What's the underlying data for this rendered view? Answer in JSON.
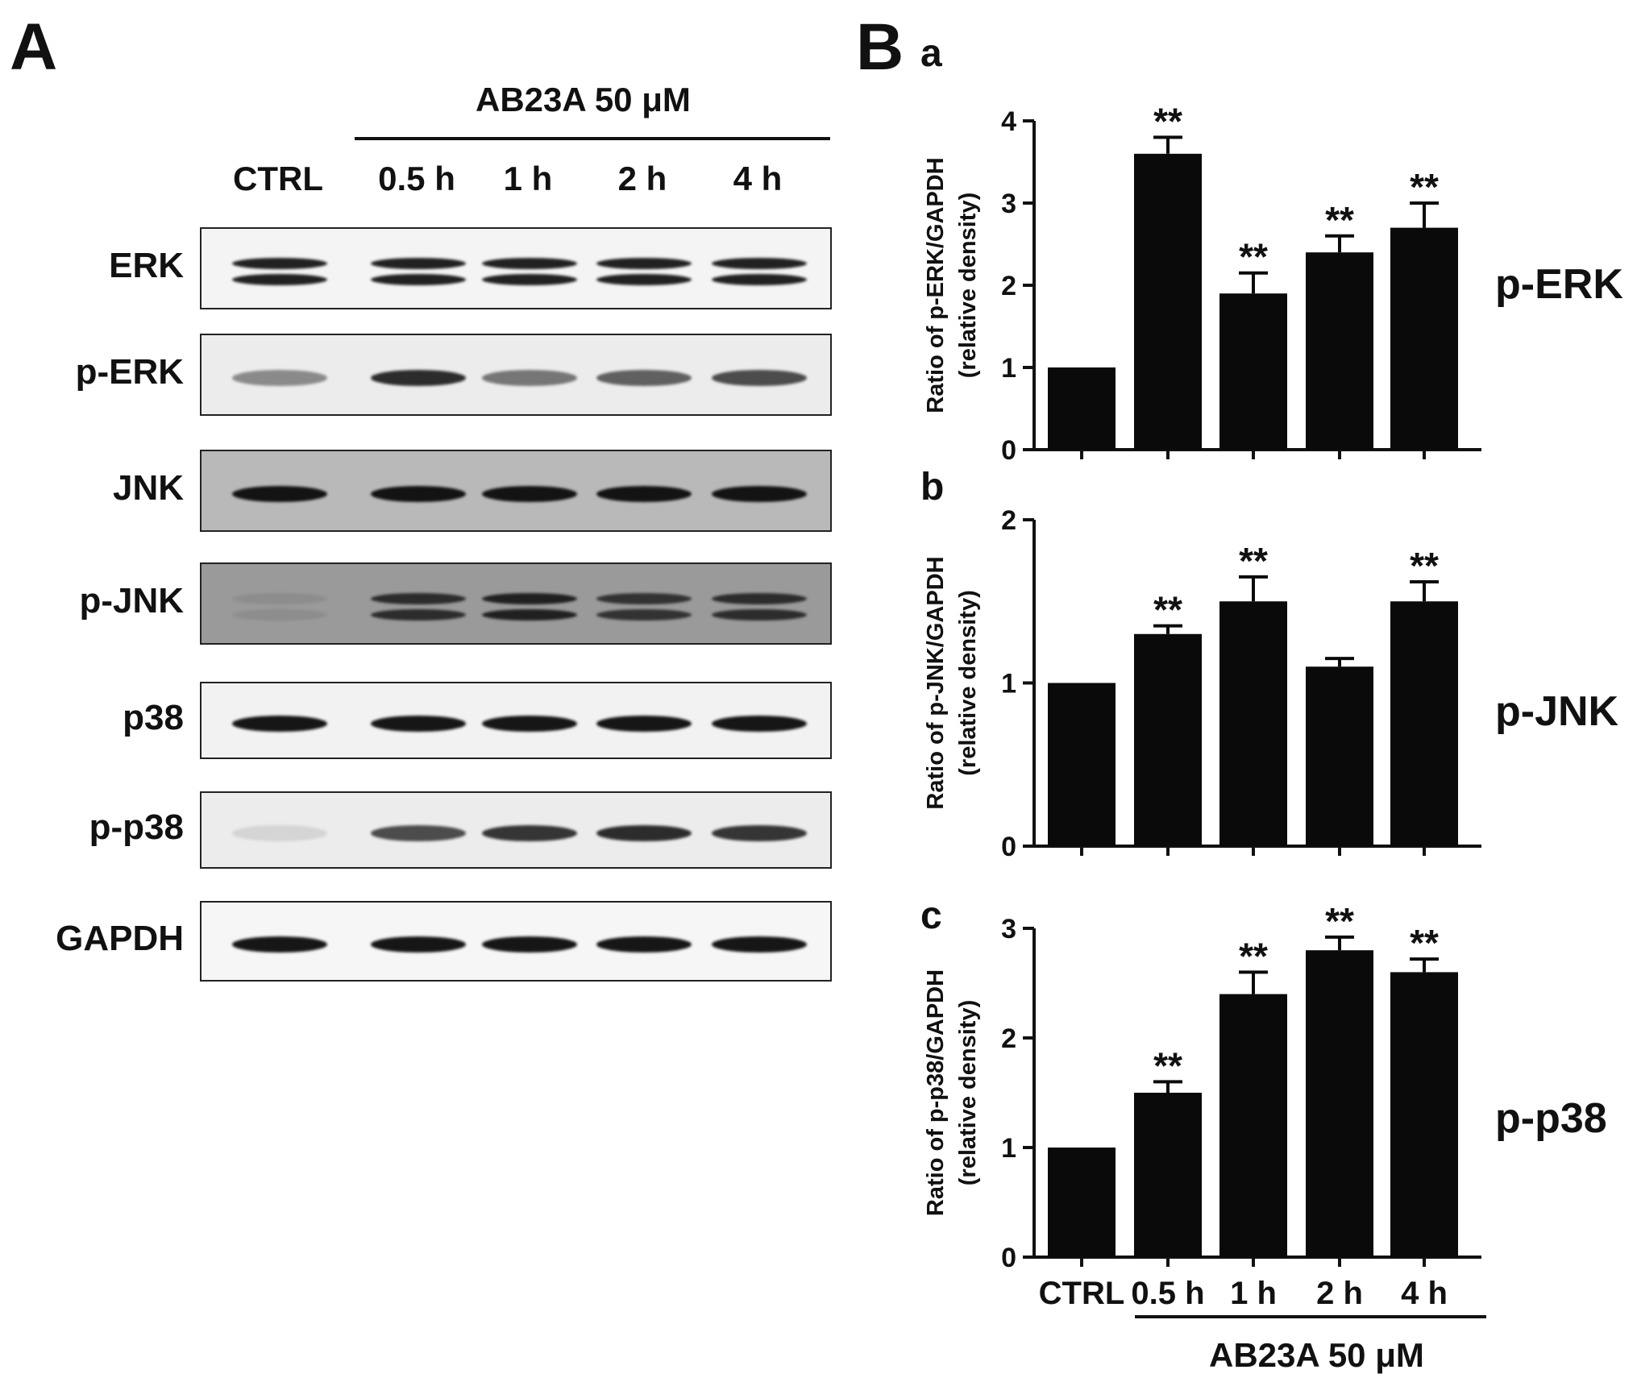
{
  "panel_a": {
    "letter": "A",
    "treatment_label": "AB23A 50 μM",
    "lanes": [
      "CTRL",
      "0.5 h",
      "1 h",
      "2 h",
      "4 h"
    ],
    "blots": [
      {
        "label": "ERK",
        "band_intensity": [
          1,
          1,
          1,
          1,
          1
        ]
      },
      {
        "label": "p-ERK",
        "band_intensity": [
          0.45,
          0.9,
          0.55,
          0.65,
          0.75
        ]
      },
      {
        "label": "JNK",
        "band_intensity": [
          1,
          1,
          1,
          1,
          1
        ]
      },
      {
        "label": "p-JNK",
        "band_intensity": [
          0.1,
          0.85,
          0.95,
          0.8,
          0.85
        ]
      },
      {
        "label": "p38",
        "band_intensity": [
          1,
          1,
          1,
          1,
          1
        ]
      },
      {
        "label": "p-p38",
        "band_intensity": [
          0.1,
          0.75,
          0.85,
          0.9,
          0.85
        ]
      },
      {
        "label": "GAPDH",
        "band_intensity": [
          1,
          1,
          1,
          1,
          1
        ]
      }
    ]
  },
  "panel_b": {
    "letter": "B",
    "treatment_label": "AB23A 50 μM"
  },
  "chart_data": [
    {
      "type": "bar",
      "panel": "a",
      "side_label": "p-ERK",
      "ylabel_line1": "Ratio of p-ERK/GAPDH",
      "ylabel_line2": "(relative density)",
      "categories": [
        "CTRL",
        "0.5 h",
        "1 h",
        "2 h",
        "4 h"
      ],
      "values": [
        1.0,
        3.6,
        1.9,
        2.4,
        2.7
      ],
      "errors": [
        0,
        0.2,
        0.25,
        0.2,
        0.3
      ],
      "significance": [
        "",
        "**",
        "**",
        "**",
        "**"
      ],
      "ylim": [
        0,
        4
      ],
      "yticks": [
        0,
        1,
        2,
        3,
        4
      ]
    },
    {
      "type": "bar",
      "panel": "b",
      "side_label": "p-JNK",
      "ylabel_line1": "Ratio of p-JNK/GAPDH",
      "ylabel_line2": "(relative density)",
      "categories": [
        "CTRL",
        "0.5 h",
        "1 h",
        "2 h",
        "4 h"
      ],
      "values": [
        1.0,
        1.3,
        1.5,
        1.1,
        1.5
      ],
      "errors": [
        0,
        0.05,
        0.15,
        0.05,
        0.12
      ],
      "significance": [
        "",
        "**",
        "**",
        "",
        "**"
      ],
      "ylim": [
        0,
        2
      ],
      "yticks": [
        0,
        1,
        2
      ]
    },
    {
      "type": "bar",
      "panel": "c",
      "side_label": "p-p38",
      "ylabel_line1": "Ratio of p-p38/GAPDH",
      "ylabel_line2": "(relative density)",
      "categories": [
        "CTRL",
        "0.5 h",
        "1 h",
        "2 h",
        "4 h"
      ],
      "values": [
        1.0,
        1.5,
        2.4,
        2.8,
        2.6
      ],
      "errors": [
        0,
        0.1,
        0.2,
        0.12,
        0.12
      ],
      "significance": [
        "",
        "**",
        "**",
        "**",
        "**"
      ],
      "ylim": [
        0,
        3
      ],
      "yticks": [
        0,
        1,
        2,
        3
      ]
    }
  ]
}
